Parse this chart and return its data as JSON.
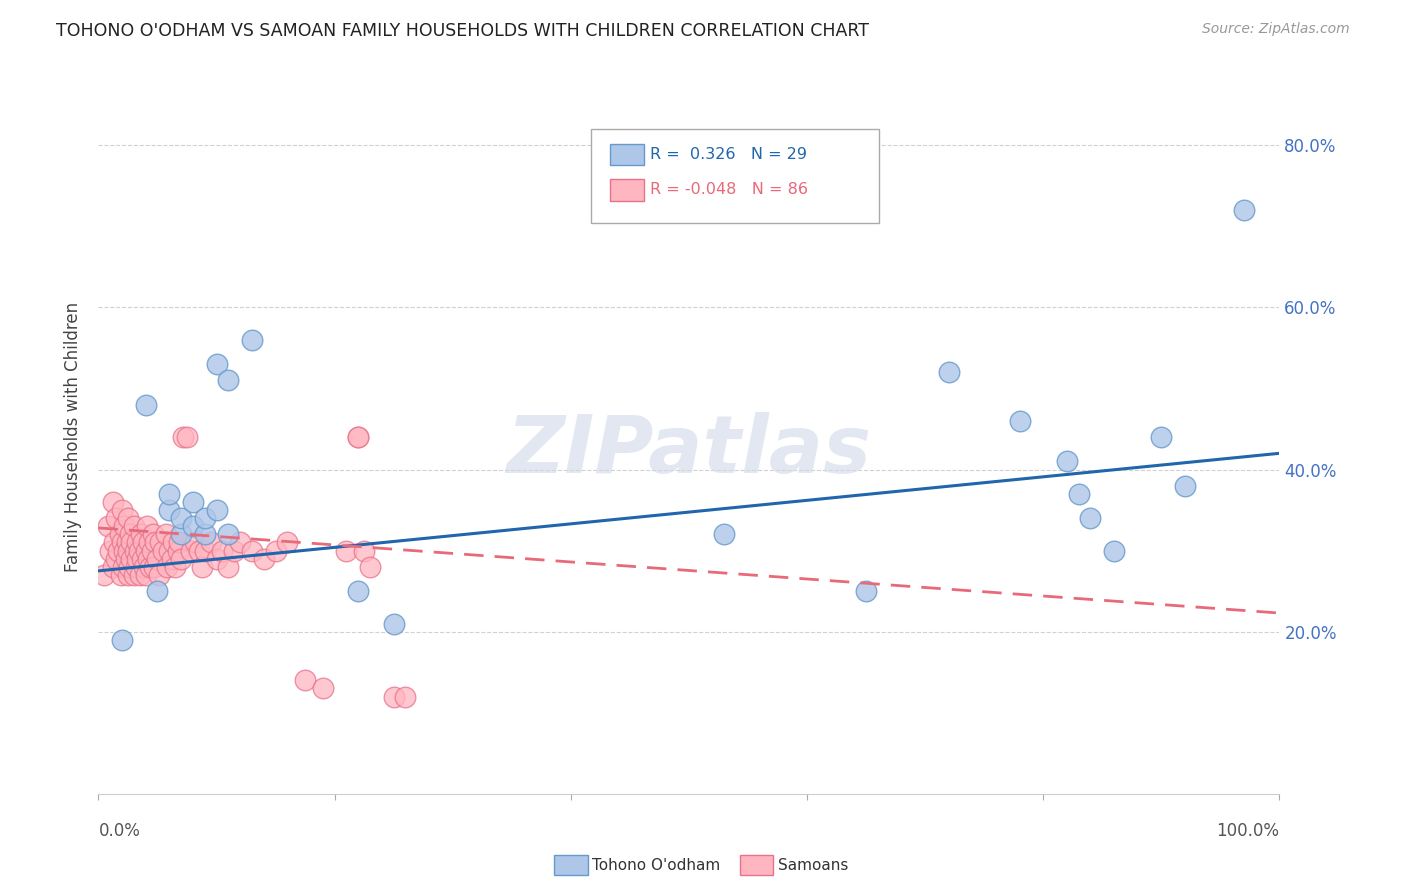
{
  "title": "TOHONO O'ODHAM VS SAMOAN FAMILY HOUSEHOLDS WITH CHILDREN CORRELATION CHART",
  "source": "Source: ZipAtlas.com",
  "ylabel": "Family Households with Children",
  "xlim": [
    0.0,
    1.0
  ],
  "ylim": [
    0.0,
    0.88
  ],
  "yticks": [
    0.2,
    0.4,
    0.6,
    0.8
  ],
  "ytick_labels": [
    "20.0%",
    "40.0%",
    "60.0%",
    "80.0%"
  ],
  "xtick_left_label": "0.0%",
  "xtick_right_label": "100.0%",
  "blue_face": "#aec6e8",
  "blue_edge": "#6699cc",
  "pink_face": "#ffb6c1",
  "pink_edge": "#e8728a",
  "blue_line": "#2166ac",
  "pink_line": "#e8697a",
  "grid_color": "#cccccc",
  "watermark_color": "#d0d8e8",
  "blue_slope": 0.145,
  "blue_intercept": 0.275,
  "pink_slope": -0.105,
  "pink_intercept": 0.328,
  "tohono_x": [
    0.02,
    0.04,
    0.05,
    0.06,
    0.06,
    0.07,
    0.07,
    0.08,
    0.08,
    0.09,
    0.09,
    0.1,
    0.1,
    0.11,
    0.11,
    0.13,
    0.22,
    0.25,
    0.53,
    0.65,
    0.72,
    0.78,
    0.82,
    0.83,
    0.84,
    0.86,
    0.9,
    0.92,
    0.97
  ],
  "tohono_y": [
    0.19,
    0.48,
    0.25,
    0.35,
    0.37,
    0.32,
    0.34,
    0.33,
    0.36,
    0.32,
    0.34,
    0.35,
    0.53,
    0.51,
    0.32,
    0.56,
    0.25,
    0.21,
    0.32,
    0.25,
    0.52,
    0.46,
    0.41,
    0.37,
    0.34,
    0.3,
    0.44,
    0.38,
    0.72
  ],
  "samoan_x": [
    0.005,
    0.008,
    0.01,
    0.012,
    0.012,
    0.013,
    0.015,
    0.015,
    0.017,
    0.018,
    0.019,
    0.02,
    0.02,
    0.021,
    0.022,
    0.022,
    0.023,
    0.024,
    0.025,
    0.025,
    0.025,
    0.026,
    0.027,
    0.028,
    0.028,
    0.03,
    0.03,
    0.031,
    0.032,
    0.033,
    0.033,
    0.034,
    0.035,
    0.036,
    0.037,
    0.038,
    0.039,
    0.04,
    0.04,
    0.041,
    0.042,
    0.043,
    0.044,
    0.045,
    0.046,
    0.047,
    0.048,
    0.05,
    0.051,
    0.052,
    0.055,
    0.057,
    0.058,
    0.06,
    0.062,
    0.063,
    0.065,
    0.067,
    0.068,
    0.07,
    0.072,
    0.075,
    0.078,
    0.082,
    0.085,
    0.088,
    0.09,
    0.095,
    0.1,
    0.105,
    0.11,
    0.115,
    0.12,
    0.13,
    0.14,
    0.15,
    0.16,
    0.175,
    0.19,
    0.21,
    0.22,
    0.22,
    0.225,
    0.23,
    0.25,
    0.26
  ],
  "samoan_y": [
    0.27,
    0.33,
    0.3,
    0.28,
    0.36,
    0.31,
    0.29,
    0.34,
    0.3,
    0.32,
    0.27,
    0.31,
    0.35,
    0.28,
    0.3,
    0.33,
    0.29,
    0.31,
    0.27,
    0.34,
    0.3,
    0.28,
    0.32,
    0.29,
    0.31,
    0.27,
    0.33,
    0.3,
    0.28,
    0.31,
    0.29,
    0.3,
    0.27,
    0.32,
    0.29,
    0.31,
    0.28,
    0.3,
    0.27,
    0.33,
    0.29,
    0.31,
    0.28,
    0.3,
    0.32,
    0.28,
    0.31,
    0.29,
    0.27,
    0.31,
    0.3,
    0.32,
    0.28,
    0.3,
    0.29,
    0.31,
    0.28,
    0.3,
    0.31,
    0.29,
    0.44,
    0.44,
    0.3,
    0.31,
    0.3,
    0.28,
    0.3,
    0.31,
    0.29,
    0.3,
    0.28,
    0.3,
    0.31,
    0.3,
    0.29,
    0.3,
    0.31,
    0.14,
    0.13,
    0.3,
    0.44,
    0.44,
    0.3,
    0.28,
    0.12,
    0.12
  ]
}
